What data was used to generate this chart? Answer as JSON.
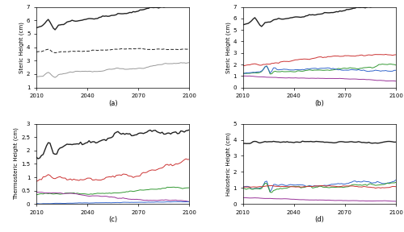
{
  "x_start": 2010,
  "x_end": 2100,
  "x_ticks": [
    2010,
    2040,
    2070,
    2100
  ],
  "panel_a": {
    "ylabel": "Steric Height (cm)",
    "xlabel": "(a)",
    "ylim": [
      1,
      7
    ],
    "yticks": [
      1,
      2,
      3,
      4,
      5,
      6,
      7
    ]
  },
  "panel_b": {
    "ylabel": "Steric Height (cm)",
    "xlabel": "(b)",
    "ylim": [
      0,
      7
    ],
    "yticks": [
      0,
      1,
      2,
      3,
      4,
      5,
      6,
      7
    ]
  },
  "panel_c": {
    "ylabel": "Thermosteric Height (cm)",
    "xlabel": "(c)",
    "ylim": [
      0,
      3
    ],
    "yticks": [
      0,
      0.5,
      1,
      1.5,
      2,
      2.5,
      3
    ]
  },
  "panel_d": {
    "ylabel": "Halosteric Height (cm)",
    "xlabel": "(d)",
    "ylim": [
      0,
      5
    ],
    "yticks": [
      0,
      1,
      2,
      3,
      4,
      5
    ]
  },
  "colors": {
    "total": "#222222",
    "red": "#cc3333",
    "green": "#339933",
    "blue": "#3366cc",
    "purple": "#993399",
    "gray": "#999999"
  },
  "background": "#ffffff"
}
